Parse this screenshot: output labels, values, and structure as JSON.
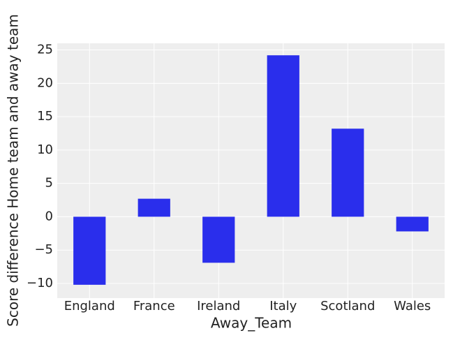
{
  "chart_data": {
    "type": "bar",
    "x_label": "Away_Team",
    "y_label": "Score difference Home team and away team",
    "categories": [
      "England",
      "France",
      "Ireland",
      "Italy",
      "Scotland",
      "Wales"
    ],
    "values": [
      -10.2,
      2.7,
      -6.9,
      24.2,
      13.2,
      -2.2
    ],
    "color": "#2a2eec",
    "ylim": [
      -12.2,
      26
    ],
    "yticks": [
      {
        "value": -10,
        "label": "−10"
      },
      {
        "value": -5,
        "label": "−5"
      },
      0,
      5,
      10,
      15,
      20,
      25
    ],
    "grid": true
  }
}
